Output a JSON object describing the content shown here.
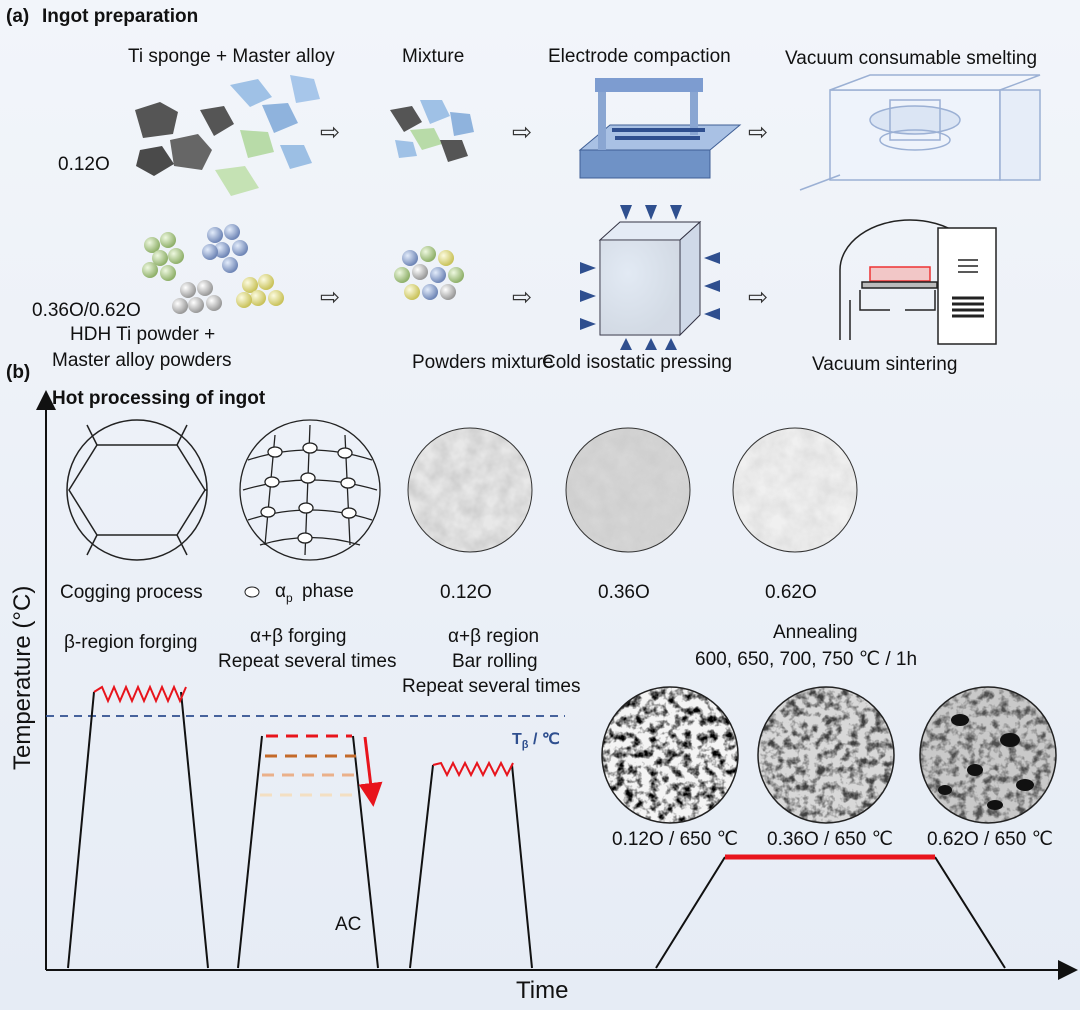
{
  "panel_a": {
    "tag": "(a)",
    "title": "Ingot preparation",
    "row1": {
      "composition": "0.12O",
      "steps": [
        "Ti sponge + Master alloy",
        "Mixture",
        "Electrode compaction",
        "Vacuum consumable smelting"
      ]
    },
    "row2": {
      "composition": "0.36O/0.62O",
      "raw_line1": "HDH Ti powder +",
      "raw_line2": "Master alloy powders",
      "steps": [
        "Powders mixture",
        "Cold isostatic pressing",
        "Vacuum sintering"
      ]
    }
  },
  "panel_b": {
    "tag": "(b)",
    "title": "Hot processing of ingot",
    "y_axis": "Temperature (°C)",
    "x_axis": "Time",
    "micro_labels": [
      "Cogging process",
      "phase",
      "0.12O",
      "0.36O",
      "0.62O"
    ],
    "alpha_p": "α",
    "alpha_p_sub": "p",
    "stages": {
      "beta_forging": "β-region forging",
      "ab_forging_1": "α+β forging",
      "ab_forging_2": "Repeat several times",
      "rolling_1": "α+β region",
      "rolling_2": "Bar rolling",
      "rolling_3": "Repeat several times",
      "annealing_1": "Annealing",
      "annealing_2": "600, 650, 700, 750 ℃ / 1h",
      "ac": "AC"
    },
    "t_beta": "T",
    "t_beta_sub": "β",
    "t_beta_unit": " / ℃",
    "annealed_labels": [
      "0.12O / 650 ℃",
      "0.36O / 650 ℃",
      "0.62O / 650 ℃"
    ],
    "colors": {
      "t_beta_line": "#2f4f8f",
      "hot": "#e8141c",
      "axis": "#111111"
    }
  }
}
